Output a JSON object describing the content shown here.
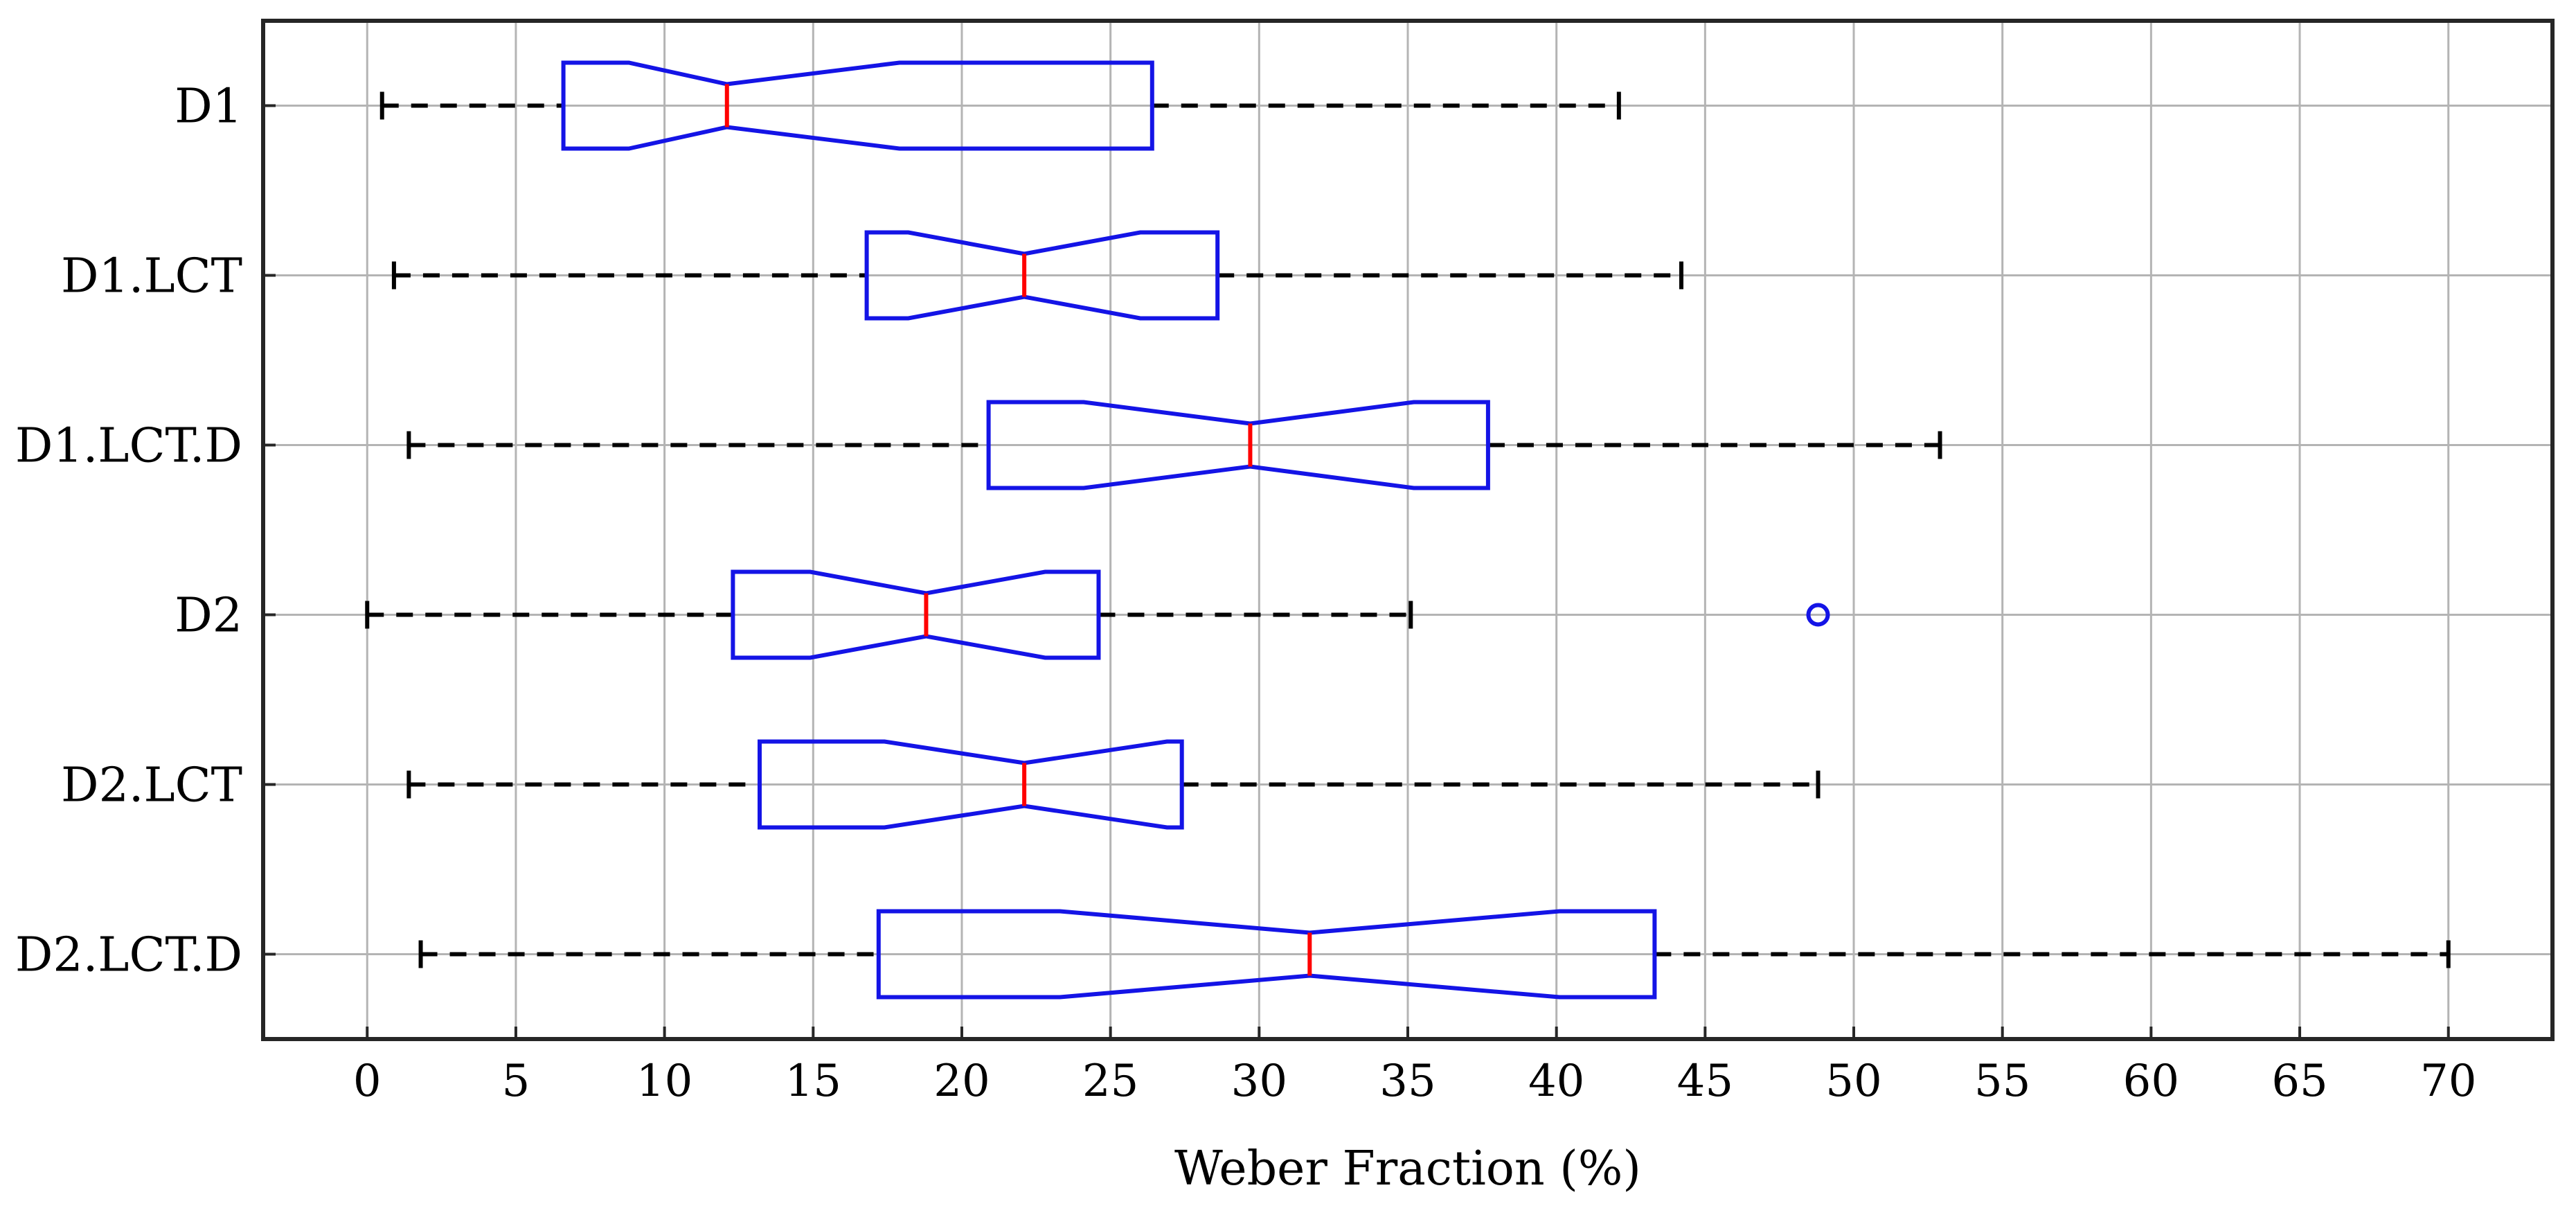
{
  "chart_data": {
    "type": "boxplot",
    "orientation": "horizontal",
    "notched": true,
    "xlabel": "Weber Fraction (%)",
    "ylabel": "",
    "xlim": [
      -3.5,
      73.5
    ],
    "x_ticks": [
      0,
      5,
      10,
      15,
      20,
      25,
      30,
      35,
      40,
      45,
      50,
      55,
      60,
      65,
      70
    ],
    "grid": true,
    "categories": [
      "D1",
      "D1.LCT",
      "D1.LCT.D",
      "D2",
      "D2.LCT",
      "D2.LCT.D"
    ],
    "boxes": [
      {
        "label": "D1",
        "whisker_low": 0.5,
        "q1": 6.6,
        "notch_low": 8.8,
        "median": 12.1,
        "notch_high": 17.9,
        "q3": 26.4,
        "whisker_high": 42.1,
        "outliers": []
      },
      {
        "label": "D1.LCT",
        "whisker_low": 0.9,
        "q1": 16.8,
        "notch_low": 18.2,
        "median": 22.1,
        "notch_high": 26.0,
        "q3": 28.6,
        "whisker_high": 44.2,
        "outliers": []
      },
      {
        "label": "D1.LCT.D",
        "whisker_low": 1.4,
        "q1": 20.9,
        "notch_low": 24.1,
        "median": 29.7,
        "notch_high": 35.2,
        "q3": 37.7,
        "whisker_high": 52.9,
        "outliers": []
      },
      {
        "label": "D2",
        "whisker_low": 0.0,
        "q1": 12.3,
        "notch_low": 14.9,
        "median": 18.8,
        "notch_high": 22.8,
        "q3": 24.6,
        "whisker_high": 35.1,
        "outliers": [
          48.8
        ]
      },
      {
        "label": "D2.LCT",
        "whisker_low": 1.4,
        "q1": 13.2,
        "notch_low": 17.4,
        "median": 22.1,
        "notch_high": 26.9,
        "q3": 27.4,
        "whisker_high": 48.8,
        "outliers": []
      },
      {
        "label": "D2.LCT.D",
        "whisker_low": 1.8,
        "q1": 17.2,
        "notch_low": 23.3,
        "median": 31.7,
        "notch_high": 40.1,
        "q3": 43.3,
        "whisker_high": 70.0,
        "outliers": []
      }
    ],
    "colors": {
      "box": "#1414e6",
      "median": "#ff0000",
      "whisker": "#000000",
      "grid": "#b4b4b4",
      "axis": "#262626",
      "outlier": "#1414e6"
    }
  }
}
